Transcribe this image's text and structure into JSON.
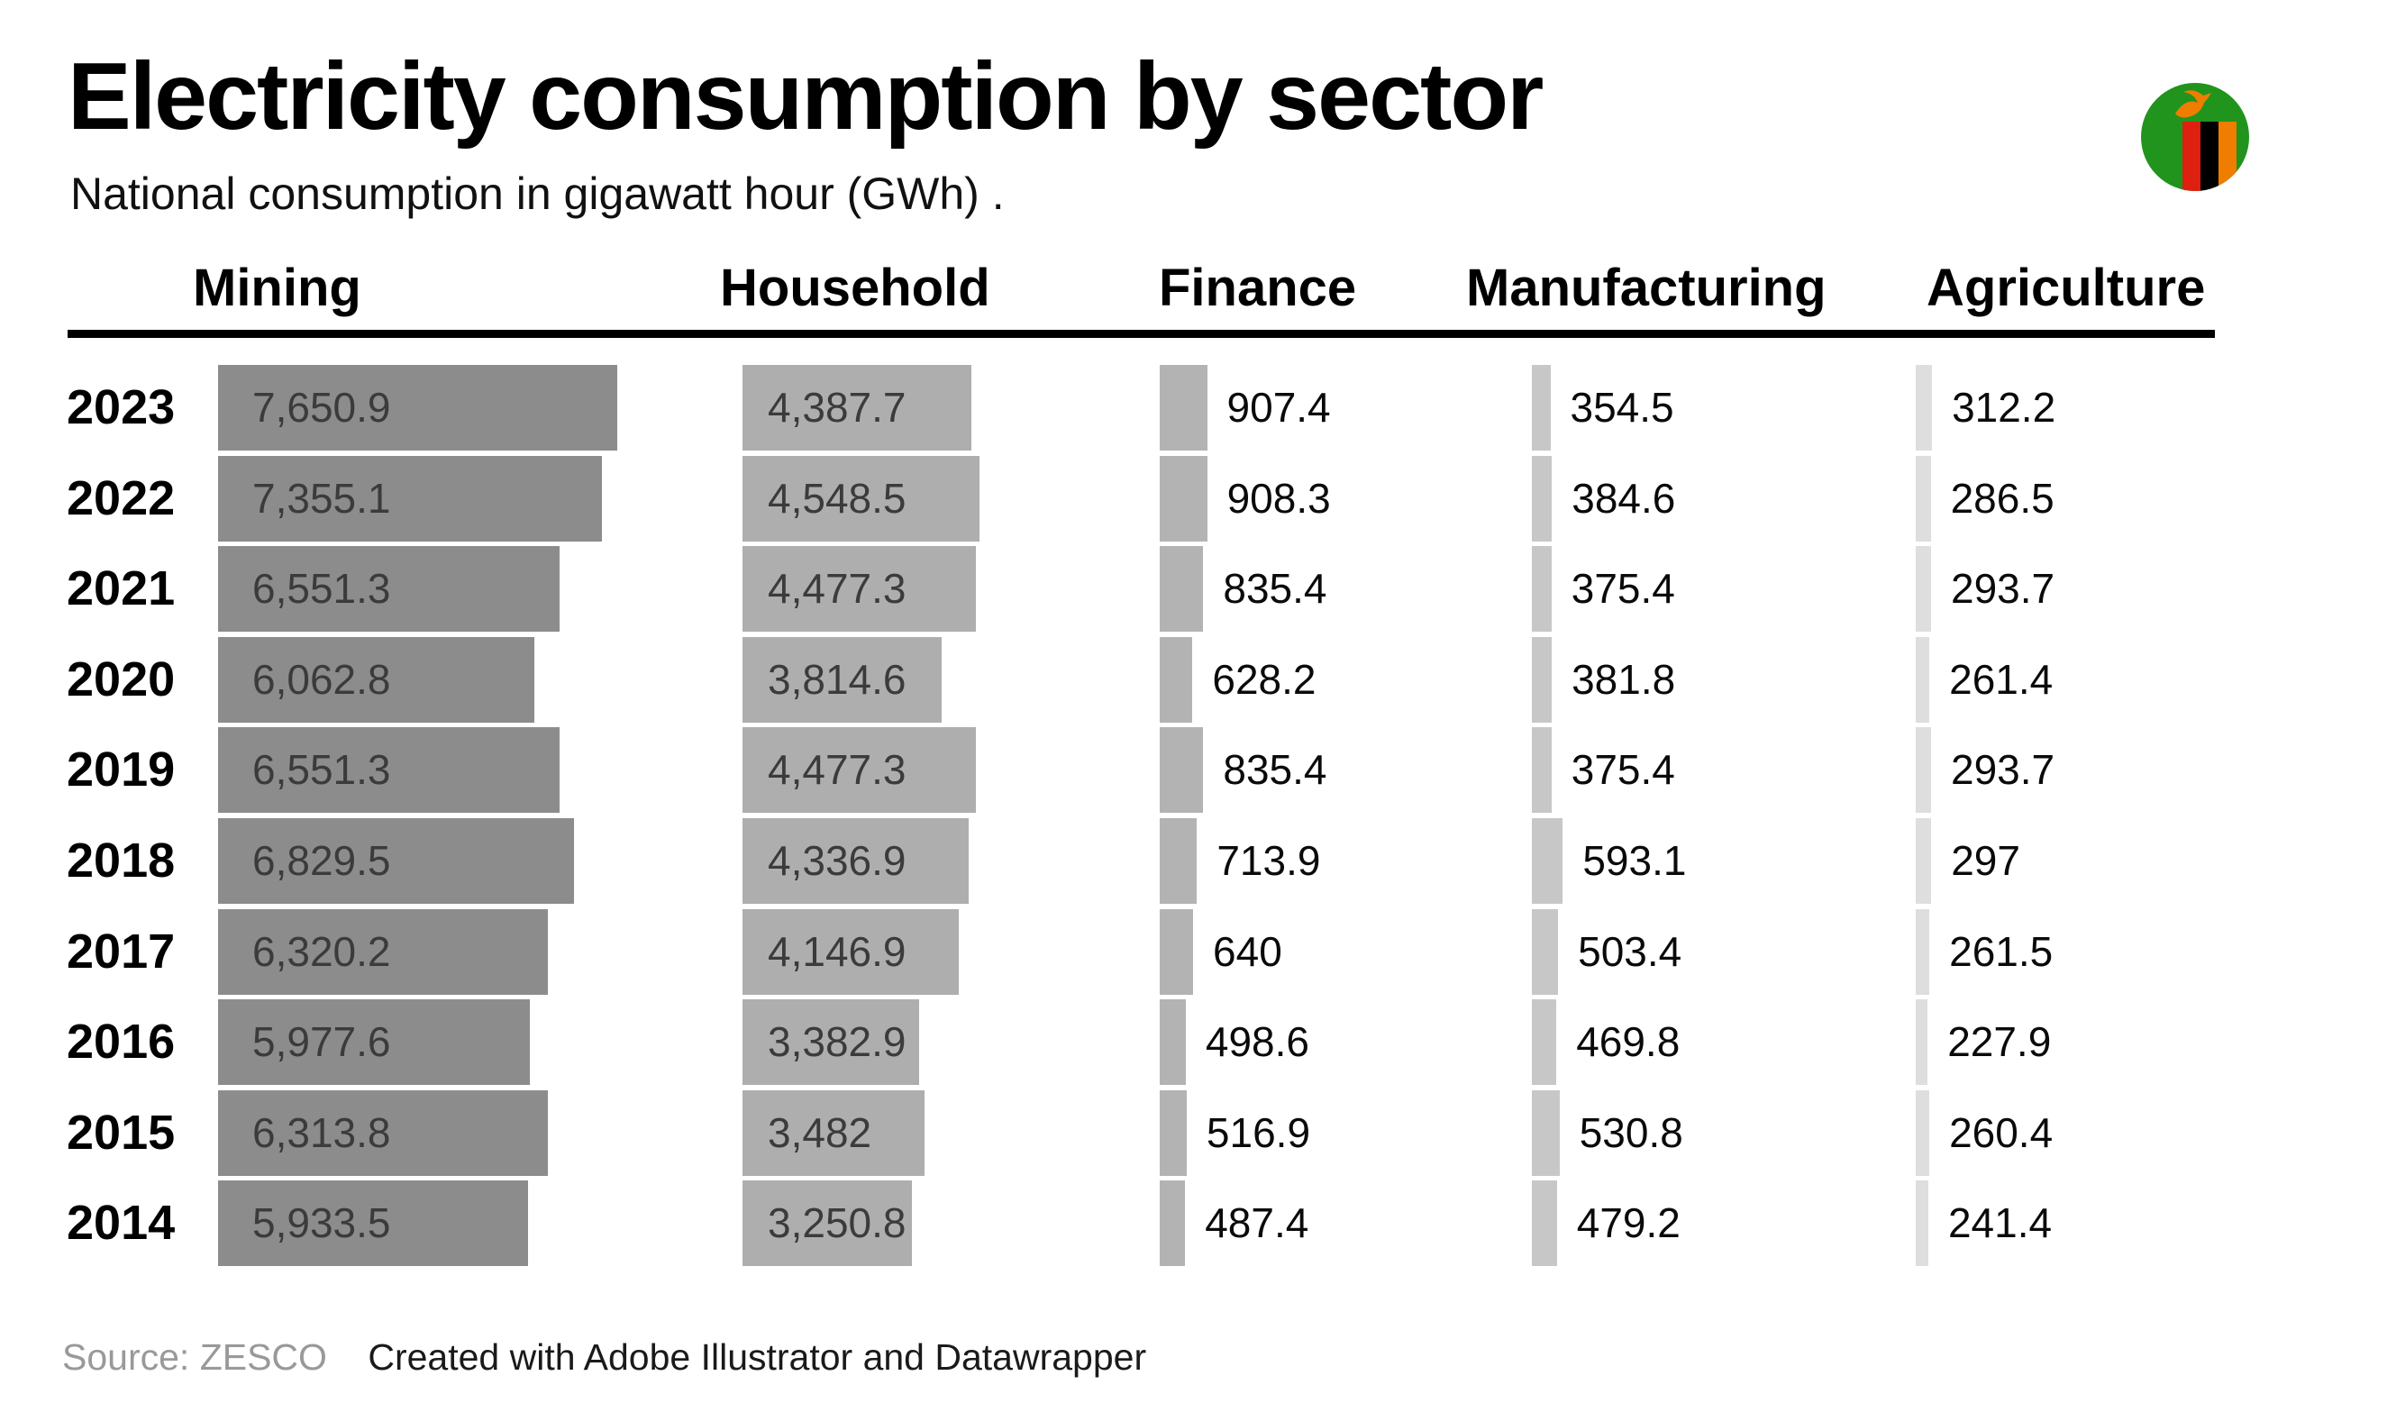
{
  "page": {
    "title": "Electricity consumption by sector",
    "subtitle": "National consumption in gigawatt hour (GWh) .",
    "source": "Source: ZESCO",
    "credit": "Created with Adobe Illustrator and Datawrapper",
    "flag_icon": "zambia-flag",
    "colors": {
      "inside_label": "#3b3b3b",
      "outside_label": "#0a0a0a",
      "source_text": "#999999",
      "credit_text": "#1a1a1a",
      "rule": "#000000",
      "flag_green": "#21941d",
      "flag_red": "#de2010",
      "flag_black": "#000000",
      "flag_orange": "#ef7d00"
    }
  },
  "chart_data": {
    "type": "bar",
    "orientation": "horizontal",
    "unit": "GWh",
    "title": "Electricity consumption by sector",
    "subtitle": "National consumption in gigawatt hour (GWh) .",
    "grid": false,
    "legend_position": "column-headers",
    "categories": [
      "2023",
      "2022",
      "2021",
      "2020",
      "2019",
      "2018",
      "2017",
      "2016",
      "2015",
      "2014"
    ],
    "series": [
      {
        "name": "Mining",
        "color": "#8c8c8c",
        "label_position": "inside",
        "values": [
          7650.9,
          7355.1,
          6551.3,
          6062.8,
          6551.3,
          6829.5,
          6320.2,
          5977.6,
          6313.8,
          5933.5
        ],
        "labels": [
          "7,650.9",
          "7,355.1",
          "6,551.3",
          "6,062.8",
          "6,551.3",
          "6,829.5",
          "6,320.2",
          "5,977.6",
          "6,313.8",
          "5,933.5"
        ]
      },
      {
        "name": "Household",
        "color": "#aeaeae",
        "label_position": "inside",
        "values": [
          4387.7,
          4548.5,
          4477.3,
          3814.6,
          4477.3,
          4336.9,
          4146.9,
          3382.9,
          3482,
          3250.8
        ],
        "labels": [
          "4,387.7",
          "4,548.5",
          "4,477.3",
          "3,814.6",
          "4,477.3",
          "4,336.9",
          "4,146.9",
          "3,382.9",
          "3,482",
          "3,250.8"
        ]
      },
      {
        "name": "Finance",
        "color": "#b3b3b3",
        "label_position": "outside",
        "values": [
          907.4,
          908.3,
          835.4,
          628.2,
          835.4,
          713.9,
          640,
          498.6,
          516.9,
          487.4
        ],
        "labels": [
          "907.4",
          "908.3",
          "835.4",
          "628.2",
          "835.4",
          "713.9",
          "640",
          "498.6",
          "516.9",
          "487.4"
        ]
      },
      {
        "name": "Manufacturing",
        "color": "#c7c7c7",
        "label_position": "outside",
        "values": [
          354.5,
          384.6,
          375.4,
          381.8,
          375.4,
          593.1,
          503.4,
          469.8,
          530.8,
          479.2
        ],
        "labels": [
          "354.5",
          "384.6",
          "375.4",
          "381.8",
          "375.4",
          "593.1",
          "503.4",
          "469.8",
          "530.8",
          "479.2"
        ]
      },
      {
        "name": "Agriculture",
        "color": "#dedede",
        "label_position": "outside",
        "values": [
          312.2,
          286.5,
          293.7,
          261.4,
          293.7,
          297,
          261.5,
          227.9,
          260.4,
          241.4
        ],
        "labels": [
          "312.2",
          "286.5",
          "293.7",
          "261.4",
          "293.7",
          "297",
          "261.5",
          "227.9",
          "260.4",
          "241.4"
        ]
      }
    ]
  }
}
